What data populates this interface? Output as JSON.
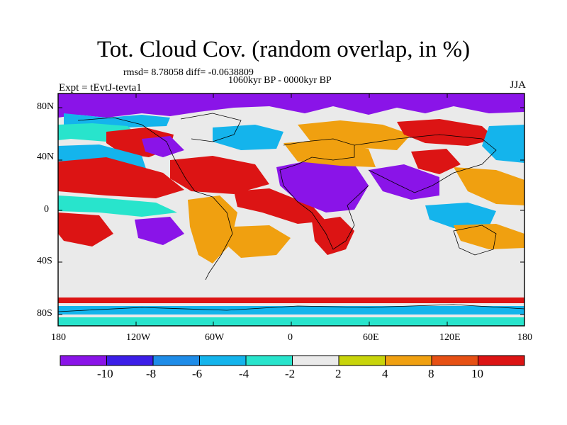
{
  "title": "Tot. Cloud Cov. (random overlap, in %)",
  "stats": "rmsd= 8.78058 diff= -0.0638809",
  "period": "1060kyr BP - 0000kyr BP",
  "experiment": "Expt = tEvtJ-tevta1",
  "season": "JJA",
  "lat_ticks": [
    "80N",
    "40N",
    "0",
    "40S",
    "80S"
  ],
  "lon_ticks": [
    "180",
    "120W",
    "60W",
    "0",
    "60E",
    "120E",
    "180"
  ],
  "colorbar": {
    "labels": [
      "-10",
      "-8",
      "-6",
      "-4",
      "-2",
      "2",
      "4",
      "8",
      "10"
    ],
    "colors": [
      "#8a14e8",
      "#3c1ee8",
      "#1e8ce8",
      "#14b4ec",
      "#28e4cc",
      "#eaeaea",
      "#c8d40a",
      "#f0a010",
      "#e65014",
      "#dc1414"
    ]
  },
  "map_colors": {
    "neg_strong": "#8a14e8",
    "neg_mid": "#3c1ee8",
    "neg_light": "#14b4ec",
    "neg_faint": "#28e4cc",
    "neutral": "#eaeaea",
    "pos_faint": "#c8d40a",
    "pos_mid": "#f0a010",
    "pos_strong": "#e65014",
    "pos_max": "#dc1414"
  }
}
